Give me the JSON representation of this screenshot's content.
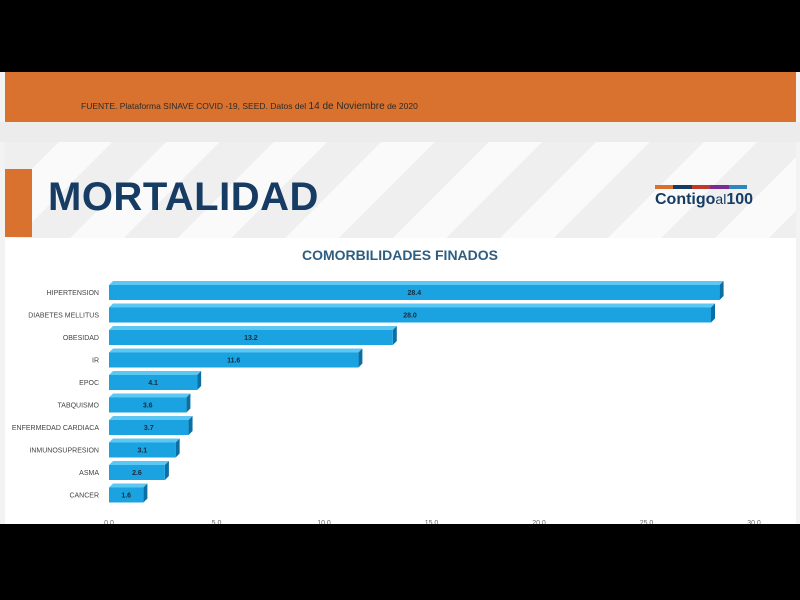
{
  "source": {
    "prefix": "FUENTE. Plataforma SINAVE COVID -19, SEED. Datos del",
    "date_big": "14 de Noviembre",
    "suffix": "de 2020"
  },
  "header": {
    "title": "MORTALIDAD",
    "logo_main": "Contigo",
    "logo_al": "al",
    "logo_num": "100",
    "logo_colors": [
      "#d9722f",
      "#163c63",
      "#c0392b",
      "#7b2d8e",
      "#2e86c1"
    ]
  },
  "colors": {
    "bar": "#1aa3e0",
    "bar_top": "#5cc7f2",
    "bar_side": "#0b6fa4",
    "accent": "#d9722f",
    "title": "#163c63"
  },
  "chart_data": {
    "type": "bar",
    "orientation": "horizontal",
    "title": "COMORBILIDADES FINADOS",
    "categories": [
      "HIPERTENSION",
      "DIABETES MELLITUS",
      "OBESIDAD",
      "IR",
      "EPOC",
      "TABQUISMO",
      "ENFERMEDAD CARDIACA",
      "INMUNOSUPRESION",
      "ASMA",
      "CANCER"
    ],
    "values": [
      28.4,
      28.0,
      13.2,
      11.6,
      4.1,
      3.6,
      3.7,
      3.1,
      2.6,
      1.6
    ],
    "data_labels": [
      "28.4",
      "28.0",
      "13.2",
      "11.6",
      "4.1",
      "3.6",
      "3.7",
      "3.1",
      "2.6",
      "1.6"
    ],
    "xlim": [
      0,
      30
    ],
    "x_ticks": [
      "0.0",
      "5.0",
      "10.0",
      "15.0",
      "20.0",
      "25.0",
      "30.0"
    ],
    "grid": false
  }
}
